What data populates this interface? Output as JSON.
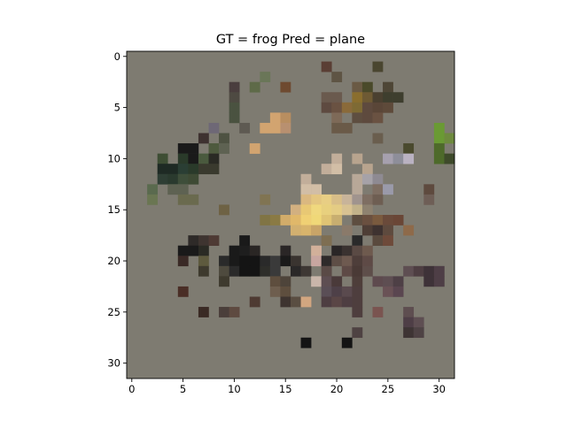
{
  "chart_data": {
    "type": "heatmap",
    "title": "GT = frog Pred = plane",
    "xlabel": "",
    "ylabel": "",
    "size": [
      32,
      32
    ],
    "xlim": [
      -0.5,
      31.5
    ],
    "ylim": [
      31.5,
      -0.5
    ],
    "x_ticks": [
      0,
      5,
      10,
      15,
      20,
      25,
      30
    ],
    "y_ticks": [
      0,
      5,
      10,
      15,
      20,
      25,
      30
    ],
    "background": "#7e7b71",
    "grid": false,
    "legend": "none",
    "pixels": [
      {
        "x": 19,
        "y": 1,
        "color": "#5a3e34"
      },
      {
        "x": 24,
        "y": 1,
        "color": "#4a4630"
      },
      {
        "x": 13,
        "y": 2,
        "color": "#6a7658"
      },
      {
        "x": 20,
        "y": 2,
        "color": "#5e5444"
      },
      {
        "x": 12,
        "y": 3,
        "color": "#5e6a48"
      },
      {
        "x": 15,
        "y": 3,
        "color": "#6e4a30"
      },
      {
        "x": 10,
        "y": 3,
        "color": "#4a3e3e"
      },
      {
        "x": 22,
        "y": 3,
        "color": "#6a5a44"
      },
      {
        "x": 23,
        "y": 3,
        "color": "#4a4a2a"
      },
      {
        "x": 25,
        "y": 3,
        "color": "#4e4636"
      },
      {
        "x": 10,
        "y": 4,
        "color": "#4e4a42"
      },
      {
        "x": 19,
        "y": 4,
        "color": "#6a5a4e"
      },
      {
        "x": 20,
        "y": 4,
        "color": "#6a5a4e"
      },
      {
        "x": 22,
        "y": 4,
        "color": "#8a6e2e"
      },
      {
        "x": 23,
        "y": 4,
        "color": "#6e5a34"
      },
      {
        "x": 24,
        "y": 4,
        "color": "#4a4030"
      },
      {
        "x": 25,
        "y": 4,
        "color": "#3e3e2e"
      },
      {
        "x": 26,
        "y": 4,
        "color": "#3e3e2e"
      },
      {
        "x": 10,
        "y": 5,
        "color": "#4a5240"
      },
      {
        "x": 19,
        "y": 5,
        "color": "#5e4a40"
      },
      {
        "x": 20,
        "y": 5,
        "color": "#6a5242"
      },
      {
        "x": 21,
        "y": 5,
        "color": "#8a6a3a"
      },
      {
        "x": 22,
        "y": 5,
        "color": "#7e6a34"
      },
      {
        "x": 23,
        "y": 5,
        "color": "#5e4a3e"
      },
      {
        "x": 24,
        "y": 5,
        "color": "#5a4638"
      },
      {
        "x": 25,
        "y": 5,
        "color": "#5e4a3a"
      },
      {
        "x": 10,
        "y": 6,
        "color": "#4a5240"
      },
      {
        "x": 14,
        "y": 6,
        "color": "#d2a470"
      },
      {
        "x": 15,
        "y": 6,
        "color": "#b88e60"
      },
      {
        "x": 20,
        "y": 6,
        "color": "#7e6a58"
      },
      {
        "x": 22,
        "y": 6,
        "color": "#5e4e40"
      },
      {
        "x": 23,
        "y": 6,
        "color": "#5e4a3e"
      },
      {
        "x": 24,
        "y": 6,
        "color": "#6a5242"
      },
      {
        "x": 8,
        "y": 7,
        "color": "#6e6876"
      },
      {
        "x": 11,
        "y": 7,
        "color": "#5e5a52"
      },
      {
        "x": 13,
        "y": 7,
        "color": "#d2a470"
      },
      {
        "x": 14,
        "y": 7,
        "color": "#d2a470"
      },
      {
        "x": 15,
        "y": 7,
        "color": "#b89070"
      },
      {
        "x": 20,
        "y": 7,
        "color": "#6a5a48"
      },
      {
        "x": 21,
        "y": 7,
        "color": "#6a5a48"
      },
      {
        "x": 30,
        "y": 7,
        "color": "#6a9a34"
      },
      {
        "x": 7,
        "y": 8,
        "color": "#3e3230"
      },
      {
        "x": 9,
        "y": 8,
        "color": "#4e5242"
      },
      {
        "x": 24,
        "y": 8,
        "color": "#6a5e4e"
      },
      {
        "x": 30,
        "y": 8,
        "color": "#6a9a34"
      },
      {
        "x": 31,
        "y": 8,
        "color": "#6e8a3e"
      },
      {
        "x": 5,
        "y": 9,
        "color": "#1a1a1a"
      },
      {
        "x": 6,
        "y": 9,
        "color": "#1a1a1a"
      },
      {
        "x": 8,
        "y": 9,
        "color": "#4e5a3e"
      },
      {
        "x": 9,
        "y": 9,
        "color": "#5e6252"
      },
      {
        "x": 12,
        "y": 9,
        "color": "#d2a470"
      },
      {
        "x": 27,
        "y": 9,
        "color": "#4a4a2e"
      },
      {
        "x": 30,
        "y": 9,
        "color": "#4e6a2a"
      },
      {
        "x": 3,
        "y": 10,
        "color": "#3e4e34"
      },
      {
        "x": 5,
        "y": 10,
        "color": "#2a3a2a"
      },
      {
        "x": 6,
        "y": 10,
        "color": "#1a1a1a"
      },
      {
        "x": 7,
        "y": 10,
        "color": "#4a5a3e"
      },
      {
        "x": 8,
        "y": 10,
        "color": "#2a2a24"
      },
      {
        "x": 20,
        "y": 10,
        "color": "#c2ae9a"
      },
      {
        "x": 22,
        "y": 10,
        "color": "#b8a48e"
      },
      {
        "x": 25,
        "y": 10,
        "color": "#a6a0ae"
      },
      {
        "x": 26,
        "y": 10,
        "color": "#8e8e9a"
      },
      {
        "x": 27,
        "y": 10,
        "color": "#bab2c2"
      },
      {
        "x": 30,
        "y": 10,
        "color": "#4e6a2a"
      },
      {
        "x": 31,
        "y": 10,
        "color": "#3e4a2a"
      },
      {
        "x": 3,
        "y": 11,
        "color": "#1e2a24"
      },
      {
        "x": 4,
        "y": 11,
        "color": "#1e2a24"
      },
      {
        "x": 5,
        "y": 11,
        "color": "#2a3e34"
      },
      {
        "x": 6,
        "y": 11,
        "color": "#2a3a2a"
      },
      {
        "x": 7,
        "y": 11,
        "color": "#3a3a2e"
      },
      {
        "x": 8,
        "y": 11,
        "color": "#3a3a2e"
      },
      {
        "x": 19,
        "y": 11,
        "color": "#c2ae9a"
      },
      {
        "x": 20,
        "y": 11,
        "color": "#d2bea6"
      },
      {
        "x": 23,
        "y": 11,
        "color": "#b8a48e"
      },
      {
        "x": 3,
        "y": 12,
        "color": "#2e3e34"
      },
      {
        "x": 4,
        "y": 12,
        "color": "#2a3a2e"
      },
      {
        "x": 5,
        "y": 12,
        "color": "#3e4e3a"
      },
      {
        "x": 6,
        "y": 12,
        "color": "#3e4a34"
      },
      {
        "x": 17,
        "y": 12,
        "color": "#c2ae9a"
      },
      {
        "x": 22,
        "y": 12,
        "color": "#b8a898"
      },
      {
        "x": 23,
        "y": 12,
        "color": "#a6a2a8"
      },
      {
        "x": 24,
        "y": 12,
        "color": "#8e8a92"
      },
      {
        "x": 2,
        "y": 13,
        "color": "#5a6a4e"
      },
      {
        "x": 4,
        "y": 13,
        "color": "#5e6252"
      },
      {
        "x": 5,
        "y": 13,
        "color": "#5e6252"
      },
      {
        "x": 17,
        "y": 13,
        "color": "#d2bea6"
      },
      {
        "x": 18,
        "y": 13,
        "color": "#d2bea6"
      },
      {
        "x": 22,
        "y": 13,
        "color": "#b8a898"
      },
      {
        "x": 24,
        "y": 13,
        "color": "#7e6e62"
      },
      {
        "x": 25,
        "y": 13,
        "color": "#9a9aaa"
      },
      {
        "x": 29,
        "y": 13,
        "color": "#5e4a3e"
      },
      {
        "x": 2,
        "y": 14,
        "color": "#6a7652"
      },
      {
        "x": 5,
        "y": 14,
        "color": "#6a6a4e"
      },
      {
        "x": 6,
        "y": 14,
        "color": "#6a6a4e"
      },
      {
        "x": 13,
        "y": 14,
        "color": "#807452"
      },
      {
        "x": 17,
        "y": 14,
        "color": "#dab880"
      },
      {
        "x": 18,
        "y": 14,
        "color": "#e4c680"
      },
      {
        "x": 19,
        "y": 14,
        "color": "#e8ce84"
      },
      {
        "x": 20,
        "y": 14,
        "color": "#d8be88"
      },
      {
        "x": 21,
        "y": 14,
        "color": "#c8b49a"
      },
      {
        "x": 22,
        "y": 14,
        "color": "#a0948e"
      },
      {
        "x": 23,
        "y": 14,
        "color": "#7e6e62"
      },
      {
        "x": 24,
        "y": 14,
        "color": "#6e5e52"
      },
      {
        "x": 29,
        "y": 14,
        "color": "#6e5e56"
      },
      {
        "x": 9,
        "y": 15,
        "color": "#6e6244"
      },
      {
        "x": 16,
        "y": 15,
        "color": "#d2b080"
      },
      {
        "x": 17,
        "y": 15,
        "color": "#e8c874"
      },
      {
        "x": 18,
        "y": 15,
        "color": "#f0d87e"
      },
      {
        "x": 19,
        "y": 15,
        "color": "#e8d07e"
      },
      {
        "x": 20,
        "y": 15,
        "color": "#e4cc84"
      },
      {
        "x": 21,
        "y": 15,
        "color": "#d8c292"
      },
      {
        "x": 22,
        "y": 15,
        "color": "#c2b28a"
      },
      {
        "x": 23,
        "y": 15,
        "color": "#8e8270"
      },
      {
        "x": 13,
        "y": 16,
        "color": "#807444"
      },
      {
        "x": 14,
        "y": 16,
        "color": "#8a7a44"
      },
      {
        "x": 15,
        "y": 16,
        "color": "#d2ac6a"
      },
      {
        "x": 16,
        "y": 16,
        "color": "#e0b86a"
      },
      {
        "x": 17,
        "y": 16,
        "color": "#f0d074"
      },
      {
        "x": 18,
        "y": 16,
        "color": "#f0d878"
      },
      {
        "x": 19,
        "y": 16,
        "color": "#e0c474"
      },
      {
        "x": 20,
        "y": 16,
        "color": "#c8ae70"
      },
      {
        "x": 22,
        "y": 16,
        "color": "#5e4e40"
      },
      {
        "x": 23,
        "y": 16,
        "color": "#6a5040"
      },
      {
        "x": 24,
        "y": 16,
        "color": "#7a5a3e"
      },
      {
        "x": 25,
        "y": 16,
        "color": "#6a4a3a"
      },
      {
        "x": 26,
        "y": 16,
        "color": "#6a4636"
      },
      {
        "x": 16,
        "y": 17,
        "color": "#d2b070"
      },
      {
        "x": 17,
        "y": 17,
        "color": "#d8b46c"
      },
      {
        "x": 18,
        "y": 17,
        "color": "#c8a468"
      },
      {
        "x": 21,
        "y": 17,
        "color": "#8a7a6a"
      },
      {
        "x": 23,
        "y": 17,
        "color": "#4e3e36"
      },
      {
        "x": 24,
        "y": 17,
        "color": "#3e3230"
      },
      {
        "x": 25,
        "y": 17,
        "color": "#5e4a3e"
      },
      {
        "x": 27,
        "y": 17,
        "color": "#8e6a4a"
      },
      {
        "x": 6,
        "y": 18,
        "color": "#2e2a28"
      },
      {
        "x": 7,
        "y": 18,
        "color": "#3e3430"
      },
      {
        "x": 8,
        "y": 18,
        "color": "#4e3a34"
      },
      {
        "x": 11,
        "y": 18,
        "color": "#1a1a1a"
      },
      {
        "x": 19,
        "y": 18,
        "color": "#7e6e52"
      },
      {
        "x": 22,
        "y": 18,
        "color": "#2a2a2a"
      },
      {
        "x": 24,
        "y": 18,
        "color": "#5a4a3e"
      },
      {
        "x": 25,
        "y": 18,
        "color": "#6e4a3a"
      },
      {
        "x": 5,
        "y": 19,
        "color": "#1a1a1a"
      },
      {
        "x": 6,
        "y": 19,
        "color": "#1a1a1a"
      },
      {
        "x": 7,
        "y": 19,
        "color": "#2a2a24"
      },
      {
        "x": 10,
        "y": 19,
        "color": "#1a1a1a"
      },
      {
        "x": 11,
        "y": 19,
        "color": "#1e1e1e"
      },
      {
        "x": 12,
        "y": 19,
        "color": "#2a2624"
      },
      {
        "x": 15,
        "y": 19,
        "color": "#2a2626"
      },
      {
        "x": 18,
        "y": 19,
        "color": "#d2b09a"
      },
      {
        "x": 20,
        "y": 19,
        "color": "#2a2626"
      },
      {
        "x": 21,
        "y": 19,
        "color": "#3a3230"
      },
      {
        "x": 22,
        "y": 19,
        "color": "#5a4a44"
      },
      {
        "x": 23,
        "y": 19,
        "color": "#6e5a4e"
      },
      {
        "x": 5,
        "y": 20,
        "color": "#3a2a26"
      },
      {
        "x": 7,
        "y": 20,
        "color": "#5e5a3e"
      },
      {
        "x": 9,
        "y": 20,
        "color": "#2a2a2a"
      },
      {
        "x": 10,
        "y": 20,
        "color": "#1a1a1a"
      },
      {
        "x": 11,
        "y": 20,
        "color": "#141414"
      },
      {
        "x": 12,
        "y": 20,
        "color": "#141414"
      },
      {
        "x": 13,
        "y": 20,
        "color": "#2a2a2a"
      },
      {
        "x": 14,
        "y": 20,
        "color": "#3a3a3a"
      },
      {
        "x": 15,
        "y": 20,
        "color": "#1a1a1a"
      },
      {
        "x": 16,
        "y": 20,
        "color": "#3a3430"
      },
      {
        "x": 18,
        "y": 20,
        "color": "#c8a6a0"
      },
      {
        "x": 19,
        "y": 20,
        "color": "#2e2a2a"
      },
      {
        "x": 20,
        "y": 20,
        "color": "#5e4e46"
      },
      {
        "x": 21,
        "y": 20,
        "color": "#6e5a50"
      },
      {
        "x": 22,
        "y": 20,
        "color": "#4e3e3a"
      },
      {
        "x": 23,
        "y": 20,
        "color": "#5e4a46"
      },
      {
        "x": 7,
        "y": 21,
        "color": "#3e3a2e"
      },
      {
        "x": 9,
        "y": 21,
        "color": "#4e4a3e"
      },
      {
        "x": 10,
        "y": 21,
        "color": "#2a2a2a"
      },
      {
        "x": 11,
        "y": 21,
        "color": "#141414"
      },
      {
        "x": 12,
        "y": 21,
        "color": "#141414"
      },
      {
        "x": 13,
        "y": 21,
        "color": "#2e2e2a"
      },
      {
        "x": 14,
        "y": 21,
        "color": "#3a3a3a"
      },
      {
        "x": 16,
        "y": 21,
        "color": "#2a2828"
      },
      {
        "x": 17,
        "y": 21,
        "color": "#3e3834"
      },
      {
        "x": 19,
        "y": 21,
        "color": "#5a4a46"
      },
      {
        "x": 21,
        "y": 21,
        "color": "#5e4a46"
      },
      {
        "x": 22,
        "y": 21,
        "color": "#4a3a36"
      },
      {
        "x": 23,
        "y": 21,
        "color": "#5e4e4a"
      },
      {
        "x": 27,
        "y": 21,
        "color": "#5e4e52"
      },
      {
        "x": 28,
        "y": 21,
        "color": "#4e3e42"
      },
      {
        "x": 29,
        "y": 21,
        "color": "#3e3238"
      },
      {
        "x": 30,
        "y": 21,
        "color": "#4e3e46"
      },
      {
        "x": 9,
        "y": 22,
        "color": "#3e3a2e"
      },
      {
        "x": 14,
        "y": 22,
        "color": "#5e4e3e"
      },
      {
        "x": 15,
        "y": 22,
        "color": "#4e443a"
      },
      {
        "x": 18,
        "y": 22,
        "color": "#cab6aa"
      },
      {
        "x": 19,
        "y": 22,
        "color": "#5e4e52"
      },
      {
        "x": 20,
        "y": 22,
        "color": "#4a3a3a"
      },
      {
        "x": 22,
        "y": 22,
        "color": "#4e3e3a"
      },
      {
        "x": 24,
        "y": 22,
        "color": "#5e4a4e"
      },
      {
        "x": 25,
        "y": 22,
        "color": "#5e4e52"
      },
      {
        "x": 26,
        "y": 22,
        "color": "#4e4046"
      },
      {
        "x": 29,
        "y": 22,
        "color": "#3e3238"
      },
      {
        "x": 30,
        "y": 22,
        "color": "#4e3e46"
      },
      {
        "x": 5,
        "y": 23,
        "color": "#4a2e26"
      },
      {
        "x": 14,
        "y": 23,
        "color": "#6e5e4e"
      },
      {
        "x": 15,
        "y": 23,
        "color": "#5e4e3e"
      },
      {
        "x": 19,
        "y": 23,
        "color": "#5a4e56"
      },
      {
        "x": 20,
        "y": 23,
        "color": "#4e4048"
      },
      {
        "x": 21,
        "y": 23,
        "color": "#5a4a4e"
      },
      {
        "x": 22,
        "y": 23,
        "color": "#4e3e3e"
      },
      {
        "x": 25,
        "y": 23,
        "color": "#6a5256"
      },
      {
        "x": 26,
        "y": 23,
        "color": "#5a4650"
      },
      {
        "x": 12,
        "y": 24,
        "color": "#4e3a32"
      },
      {
        "x": 15,
        "y": 24,
        "color": "#3e3430"
      },
      {
        "x": 16,
        "y": 24,
        "color": "#5a4e42"
      },
      {
        "x": 17,
        "y": 24,
        "color": "#d2a680"
      },
      {
        "x": 19,
        "y": 24,
        "color": "#4e3e42"
      },
      {
        "x": 20,
        "y": 24,
        "color": "#5a4646"
      },
      {
        "x": 21,
        "y": 24,
        "color": "#4e3e42"
      },
      {
        "x": 22,
        "y": 24,
        "color": "#4e3e3e"
      },
      {
        "x": 7,
        "y": 25,
        "color": "#3a2a24"
      },
      {
        "x": 9,
        "y": 25,
        "color": "#4a3e3a"
      },
      {
        "x": 10,
        "y": 25,
        "color": "#5e4a40"
      },
      {
        "x": 22,
        "y": 25,
        "color": "#4e3e3e"
      },
      {
        "x": 24,
        "y": 25,
        "color": "#7a5450"
      },
      {
        "x": 27,
        "y": 25,
        "color": "#5e4e50"
      },
      {
        "x": 27,
        "y": 26,
        "color": "#4e3e46"
      },
      {
        "x": 28,
        "y": 26,
        "color": "#5e4e52"
      },
      {
        "x": 22,
        "y": 27,
        "color": "#4e4242"
      },
      {
        "x": 27,
        "y": 27,
        "color": "#3e3434"
      },
      {
        "x": 28,
        "y": 27,
        "color": "#4e4244"
      },
      {
        "x": 17,
        "y": 28,
        "color": "#141414"
      },
      {
        "x": 21,
        "y": 28,
        "color": "#141414"
      }
    ]
  }
}
